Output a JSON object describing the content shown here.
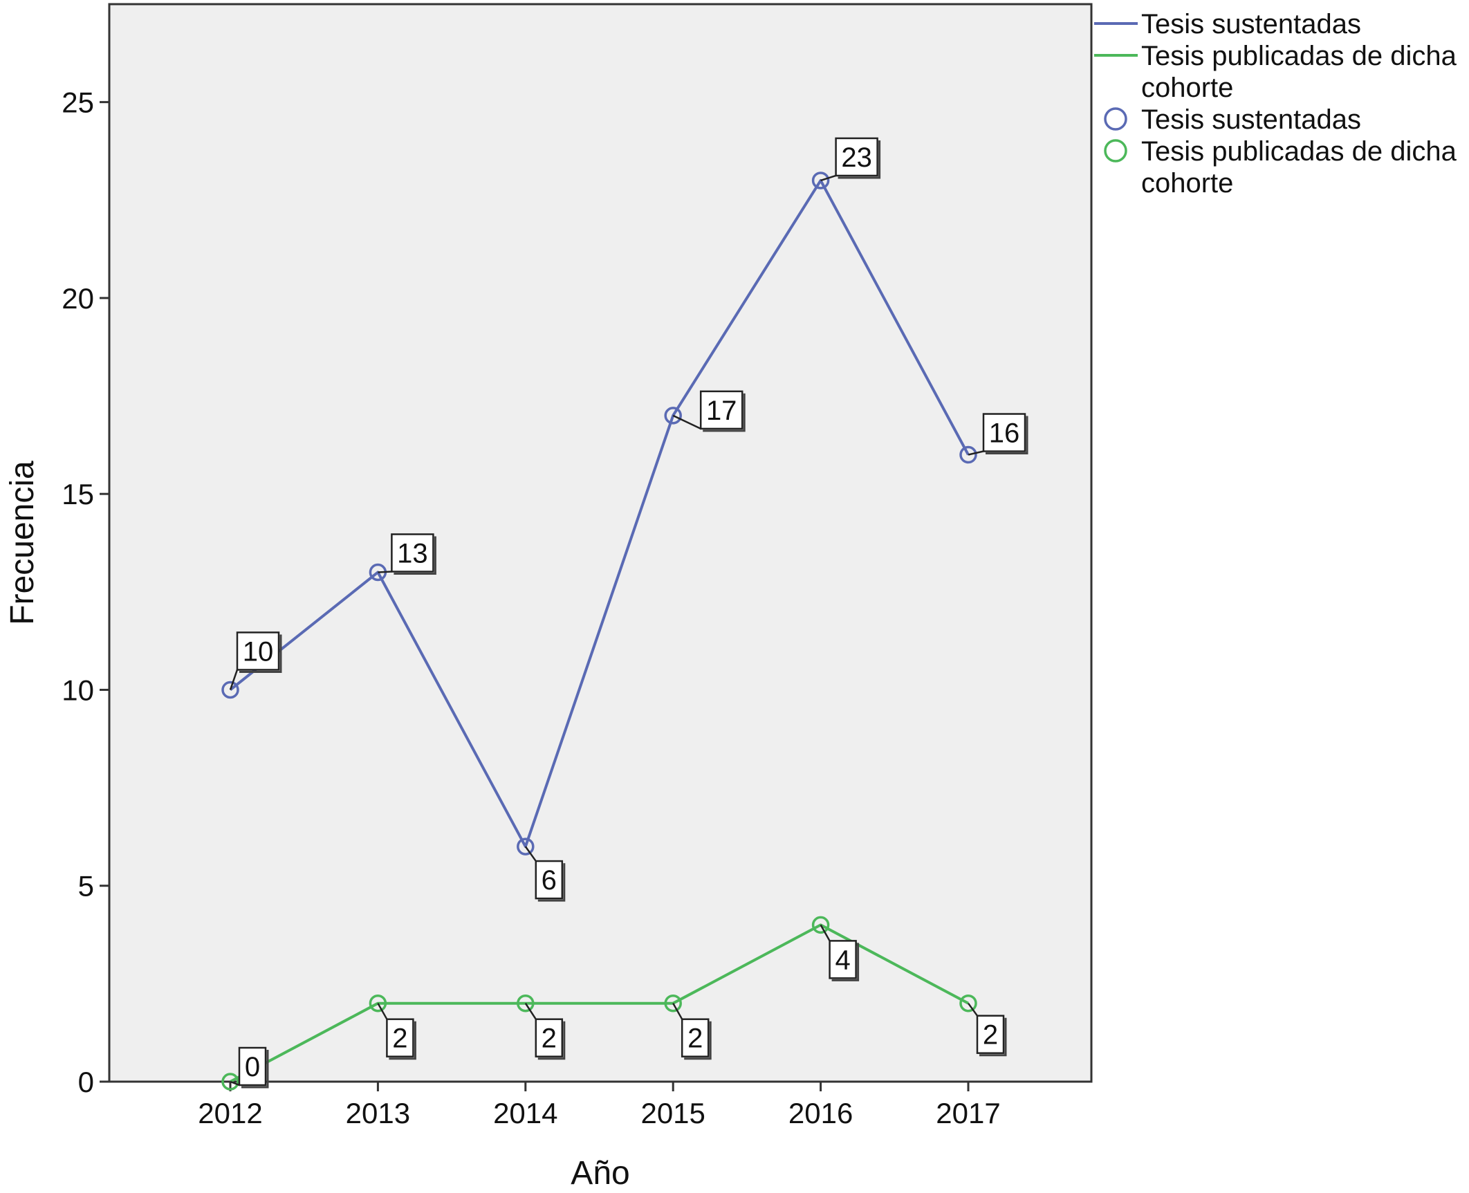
{
  "chart_data": {
    "type": "line",
    "xlabel": "Año",
    "ylabel": "Frecuencia",
    "categories": [
      "2012",
      "2013",
      "2014",
      "2015",
      "2016",
      "2017"
    ],
    "ylim": [
      0,
      27.5
    ],
    "yticks": [
      0,
      5,
      10,
      15,
      20,
      25
    ],
    "grid": false,
    "markers": "open-circle",
    "data_labels": true,
    "legend_position": "right-top",
    "series": [
      {
        "name": "Tesis sustentadas",
        "color": "#5a6ab4",
        "values": [
          10,
          13,
          6,
          17,
          23,
          16
        ]
      },
      {
        "name": "Tesis publicadas de dicha cohorte",
        "color": "#4cb85a",
        "values": [
          0,
          2,
          2,
          2,
          4,
          2
        ]
      }
    ],
    "legend": {
      "line_entries": [
        {
          "lines": [
            "Tesis sustentadas"
          ]
        },
        {
          "lines": [
            "Tesis publicadas de dicha",
            "cohorte"
          ]
        }
      ],
      "marker_entries": [
        {
          "lines": [
            "Tesis sustentadas"
          ]
        },
        {
          "lines": [
            "Tesis publicadas de dicha",
            "cohorte"
          ]
        }
      ]
    }
  }
}
